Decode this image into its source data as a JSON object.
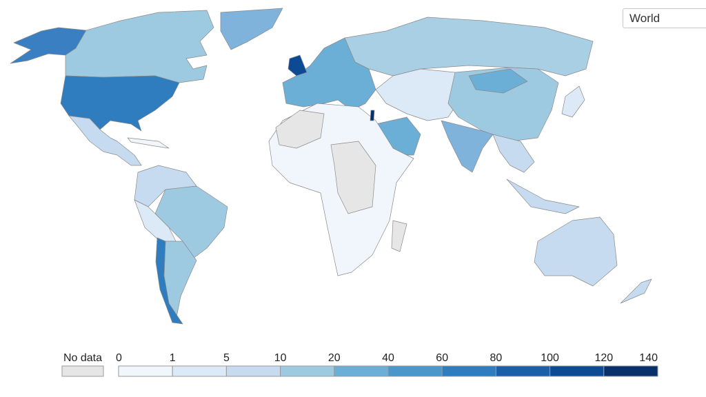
{
  "region_selector": "World",
  "legend": {
    "no_data_label": "No data",
    "no_data_color": "#e6e6e6",
    "bins": [
      "0",
      "1",
      "5",
      "10",
      "20",
      "40",
      "60",
      "80",
      "100",
      "120",
      "140"
    ],
    "colors": [
      "#f1f6fc",
      "#dce9f6",
      "#c6dbef",
      "#9ecae1",
      "#6baed6",
      "#4a97c9",
      "#2f7cbe",
      "#1a5fa8",
      "#0d4a94",
      "#08306b"
    ]
  }
}
